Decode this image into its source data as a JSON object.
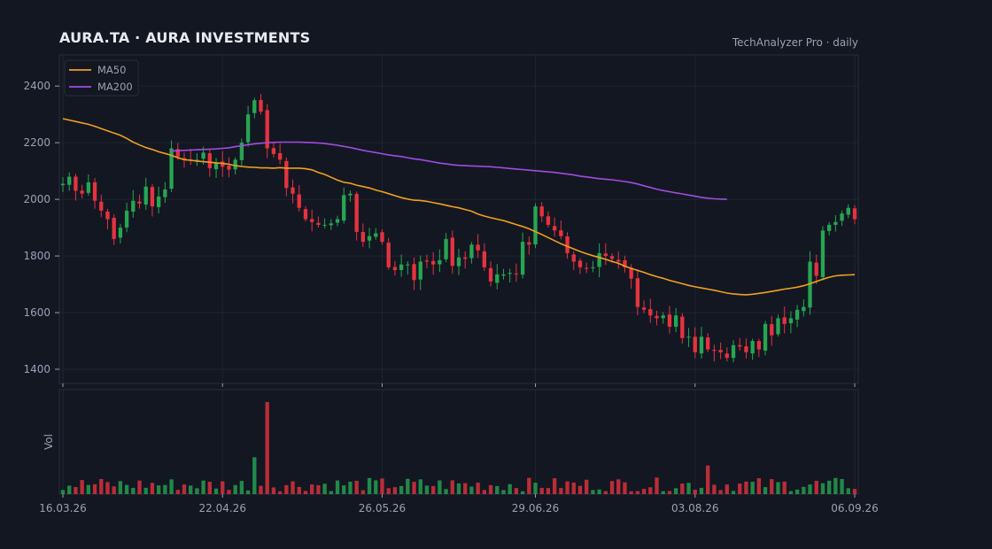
{
  "header": {
    "title": "AURA.TA  ·  AURA INVESTMENTS",
    "subtitle": "TechAnalyzer Pro · daily"
  },
  "colors": {
    "background": "#131722",
    "panel_border": "#2a2e39",
    "grid": "#1f2433",
    "up": "#26a652",
    "down": "#e5333f",
    "ma50": "#f0a020",
    "ma200": "#a24ce0",
    "text": "#9aa1b1"
  },
  "chart_data": {
    "type": "candlestick",
    "title": "AURA.TA  ·  AURA INVESTMENTS",
    "price_axis": {
      "ylim": [
        1350,
        2510
      ],
      "ticks": [
        1400,
        1600,
        1800,
        2000,
        2200,
        2400
      ]
    },
    "volume_axis": {
      "label": "Vol"
    },
    "x_tick_labels": [
      {
        "index": 0,
        "label": "16.03.26"
      },
      {
        "index": 25,
        "label": "22.04.26"
      },
      {
        "index": 50,
        "label": "26.05.26"
      },
      {
        "index": 74,
        "label": "29.06.26"
      },
      {
        "index": 99,
        "label": "03.08.26"
      },
      {
        "index": 124,
        "label": "06.09.26"
      }
    ],
    "legend": {
      "position": "top-left",
      "entries": [
        "MA50",
        "MA200"
      ]
    },
    "grid": true,
    "closes": [
      2055,
      2080,
      2030,
      2020,
      2060,
      1995,
      1960,
      1930,
      1860,
      1900,
      1960,
      1995,
      1985,
      2045,
      1975,
      2010,
      2035,
      2180,
      2150,
      2140,
      2140,
      2140,
      2165,
      2110,
      2130,
      2115,
      2105,
      2140,
      2200,
      2300,
      2350,
      2310,
      2180,
      2160,
      2140,
      2040,
      2020,
      1970,
      1930,
      1920,
      1910,
      1910,
      1915,
      1930,
      2015,
      2020,
      1885,
      1850,
      1870,
      1880,
      1850,
      1760,
      1750,
      1770,
      1770,
      1715,
      1780,
      1780,
      1770,
      1785,
      1860,
      1765,
      1795,
      1790,
      1840,
      1820,
      1760,
      1710,
      1735,
      1735,
      1740,
      1735,
      1850,
      1840,
      1975,
      1940,
      1910,
      1890,
      1870,
      1810,
      1780,
      1760,
      1755,
      1760,
      1810,
      1800,
      1790,
      1780,
      1760,
      1720,
      1620,
      1610,
      1590,
      1580,
      1590,
      1550,
      1590,
      1510,
      1515,
      1460,
      1515,
      1470,
      1465,
      1460,
      1440,
      1485,
      1480,
      1460,
      1500,
      1470,
      1560,
      1520,
      1580,
      1560,
      1580,
      1610,
      1620,
      1780,
      1730,
      1890,
      1910,
      1920,
      1950,
      1970,
      1930
    ],
    "ma50": [
      2285,
      2280,
      2275,
      2270,
      2265,
      2258,
      2250,
      2242,
      2234,
      2226,
      2215,
      2202,
      2192,
      2183,
      2176,
      2168,
      2162,
      2155,
      2147,
      2140,
      2138,
      2135,
      2133,
      2131,
      2129,
      2127,
      2124,
      2119,
      2116,
      2114,
      2113,
      2111,
      2111,
      2110,
      2112,
      2110,
      2110,
      2110,
      2108,
      2104,
      2095,
      2088,
      2078,
      2068,
      2060,
      2057,
      2050,
      2045,
      2040,
      2033,
      2027,
      2020,
      2013,
      2006,
      2001,
      1997,
      1996,
      1993,
      1988,
      1984,
      1979,
      1974,
      1970,
      1964,
      1958,
      1948,
      1941,
      1935,
      1930,
      1925,
      1918,
      1911,
      1904,
      1896,
      1886,
      1876,
      1865,
      1854,
      1843,
      1834,
      1825,
      1816,
      1808,
      1801,
      1795,
      1788,
      1781,
      1774,
      1764,
      1756,
      1749,
      1742,
      1734,
      1727,
      1721,
      1714,
      1708,
      1702,
      1696,
      1691,
      1687,
      1683,
      1679,
      1674,
      1669,
      1666,
      1664,
      1663,
      1665,
      1668,
      1671,
      1675,
      1679,
      1683,
      1686,
      1690,
      1695,
      1702,
      1710,
      1718,
      1725,
      1730,
      1732,
      1733,
      1734
    ],
    "ma200_start_index": 17,
    "ma200": [
      2170,
      2172,
      2173,
      2174,
      2175,
      2176,
      2177,
      2178,
      2180,
      2182,
      2186,
      2189,
      2193,
      2196,
      2198,
      2200,
      2201,
      2202,
      2202,
      2202,
      2202,
      2201,
      2200,
      2199,
      2197,
      2194,
      2191,
      2187,
      2183,
      2178,
      2173,
      2169,
      2165,
      2161,
      2157,
      2154,
      2151,
      2147,
      2143,
      2140,
      2136,
      2132,
      2128,
      2125,
      2122,
      2120,
      2119,
      2118,
      2117,
      2116,
      2115,
      2113,
      2111,
      2109,
      2107,
      2105,
      2103,
      2101,
      2099,
      2097,
      2095,
      2092,
      2089,
      2086,
      2082,
      2079,
      2076,
      2073,
      2071,
      2069,
      2066,
      2063,
      2059,
      2054,
      2048,
      2042,
      2036,
      2031,
      2027,
      2023,
      2019,
      2015,
      2011,
      2007,
      2004,
      2002,
      2001,
      2000
    ],
    "volume_spikes": [
      {
        "index": 32,
        "relative": 1.0
      },
      {
        "index": 30,
        "relative": 0.4
      },
      {
        "index": 101,
        "relative": 0.31
      }
    ],
    "bar_count": 125
  }
}
